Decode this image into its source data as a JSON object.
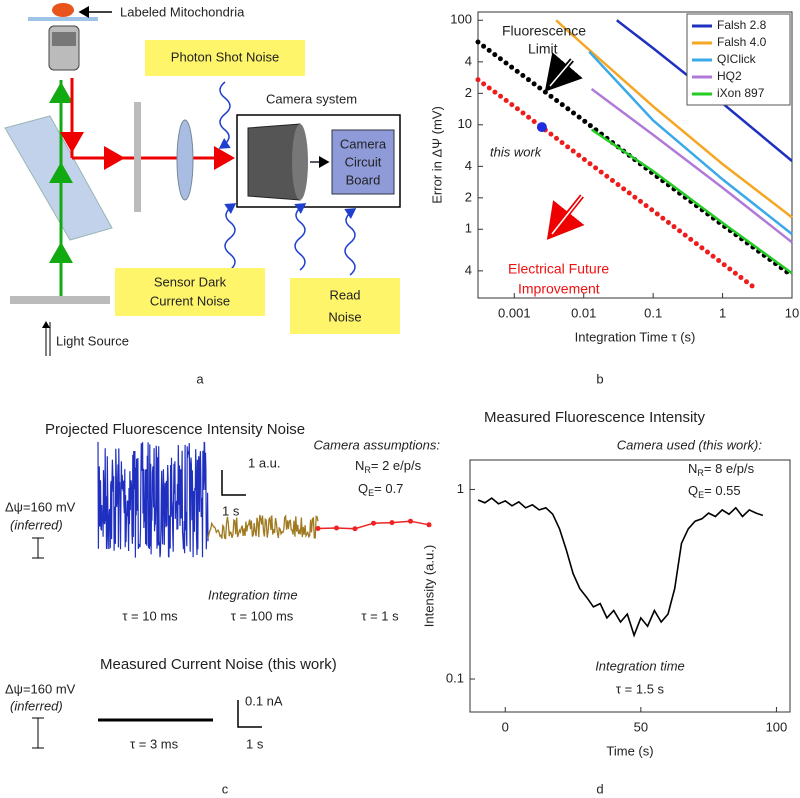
{
  "panel_a": {
    "label": "a",
    "sample": "Labeled Mitochondria",
    "shot_noise": "Photon Shot Noise",
    "camera_system": "Camera system",
    "circuit_board": [
      "Camera",
      "Circuit",
      "Board"
    ],
    "dark_noise": [
      "Sensor Dark",
      "Current Noise"
    ],
    "read_noise": [
      "Read",
      "Noise"
    ],
    "light_source": "Light Source"
  },
  "panel_c": {
    "label": "c",
    "title": "Projected Fluorescence Intensity  Noise",
    "assumptions": "Camera assumptions:",
    "nr": {
      "symbol": "N",
      "subscript": "R",
      "text": "= 2 e/p/s"
    },
    "qe": {
      "symbol": "Q",
      "subscript": "E",
      "text": "= 0.7"
    },
    "scale_y": "1 a.u.",
    "scale_x": "1 s",
    "delta_psi": "Δψ=160 mV",
    "inferred": "(inferred)",
    "integration_time": "Integration time",
    "tau_labels": [
      "τ = 10 ms",
      "τ = 100 ms",
      "τ = 1 s"
    ],
    "current_title": "Measured Current Noise (this work)",
    "current_delta_psi": "Δψ=160 mV",
    "current_inferred": "(inferred)",
    "current_scale_y": "0.1 nA",
    "current_scale_x": "1 s",
    "current_tau": "τ = 3 ms"
  },
  "chart_data": [
    {
      "type": "line",
      "panel_label": "b",
      "x_label": "Integration Time  τ (s)",
      "y_label": "Error in  ΔΨ (mV)",
      "log_x": true,
      "log_y": true,
      "xlim": [
        0.0003,
        10
      ],
      "ylim": [
        0.22,
        120
      ],
      "xticks": [
        0.001,
        0.01,
        0.1,
        1,
        10
      ],
      "yticks": [
        {
          "value": 0.4,
          "label": "4"
        },
        1,
        2,
        4,
        10,
        {
          "value": 20,
          "label": "2"
        },
        {
          "value": 40,
          "label": "4"
        },
        100
      ],
      "legend": "upper right",
      "series": [
        {
          "name": "Falsh 2.8",
          "color": "#1f2fbf",
          "x": [
            0.03,
            0.1,
            1,
            10
          ],
          "values": [
            100,
            54,
            16,
            4.5
          ]
        },
        {
          "name": "Falsh 4.0",
          "color": "#f5a623",
          "x": [
            0.004,
            0.01,
            0.1,
            1,
            10
          ],
          "values": [
            100,
            58,
            15,
            4.2,
            1.3
          ]
        },
        {
          "name": "QIClick",
          "color": "#3aa9e8",
          "x": [
            0.012,
            0.1,
            1,
            10
          ],
          "values": [
            50,
            11,
            3,
            0.9
          ]
        },
        {
          "name": "HQ2",
          "color": "#b07ad8",
          "x": [
            0.013,
            0.1,
            1,
            10
          ],
          "values": [
            22,
            8,
            2.5,
            0.75
          ]
        },
        {
          "name": "iXon 897",
          "color": "#22cc22",
          "x": [
            0.013,
            0.1,
            1,
            10
          ],
          "values": [
            9,
            3.6,
            1.15,
            0.38
          ]
        }
      ],
      "reference_lines": [
        {
          "color": "#000000",
          "style": "dotted",
          "x": [
            0.0003,
            0.001,
            0.01,
            0.1,
            1,
            10
          ],
          "values": [
            62,
            34,
            11,
            3.4,
            1.1,
            0.36
          ]
        },
        {
          "color": "#ee1c1c",
          "style": "dotted",
          "x": [
            0.0003,
            0.001,
            0.01,
            0.1,
            1,
            3
          ],
          "values": [
            27,
            15,
            4.7,
            1.5,
            0.47,
            0.27
          ]
        }
      ],
      "point": {
        "color": "#1f2fdf",
        "x": 0.0025,
        "value": 9.5
      },
      "annotations": {
        "limit": [
          "Fluorescence",
          "Limit"
        ],
        "this_work": "this work",
        "future": [
          "Electrical Future",
          "Improvement"
        ]
      }
    },
    {
      "type": "line",
      "panel_label": "d",
      "title": "Measured  Fluorescence Intensity",
      "camera": "Camera used (this work):",
      "nr": {
        "symbol": "N",
        "subscript": "R",
        "text": "= 8 e/p/s"
      },
      "qe": {
        "symbol": "Q",
        "subscript": "E",
        "text": "= 0.55"
      },
      "integration_time": "Integration time",
      "tau": "τ = 1.5 s",
      "x_label": "Time (s)",
      "y_label": "Intensity (a.u.)",
      "log_y": true,
      "xlim": [
        -13,
        105
      ],
      "ylim": [
        0.067,
        1.43
      ],
      "xticks": [
        0,
        50,
        100
      ],
      "yticks": [
        0.1,
        1
      ],
      "series": [
        {
          "color": "#000000",
          "x": [
            -10,
            -7.5,
            -5,
            -2.5,
            0,
            2.5,
            5,
            7.5,
            10,
            12.5,
            15,
            17.5,
            20,
            22.5,
            25,
            27.5,
            30,
            32.5,
            35,
            37.5,
            40,
            42.5,
            45,
            47.5,
            50,
            52.5,
            55,
            57.5,
            60,
            62.5,
            65,
            67.5,
            70,
            72.5,
            75,
            77.5,
            80,
            82.5,
            85,
            87.5,
            90,
            92.5,
            95
          ],
          "values": [
            0.88,
            0.85,
            0.9,
            0.84,
            0.87,
            0.82,
            0.86,
            0.8,
            0.83,
            0.78,
            0.8,
            0.74,
            0.62,
            0.48,
            0.36,
            0.3,
            0.27,
            0.24,
            0.25,
            0.21,
            0.23,
            0.2,
            0.22,
            0.17,
            0.21,
            0.19,
            0.23,
            0.2,
            0.22,
            0.3,
            0.52,
            0.62,
            0.68,
            0.7,
            0.75,
            0.72,
            0.78,
            0.74,
            0.8,
            0.72,
            0.78,
            0.75,
            0.73
          ]
        }
      ]
    }
  ]
}
